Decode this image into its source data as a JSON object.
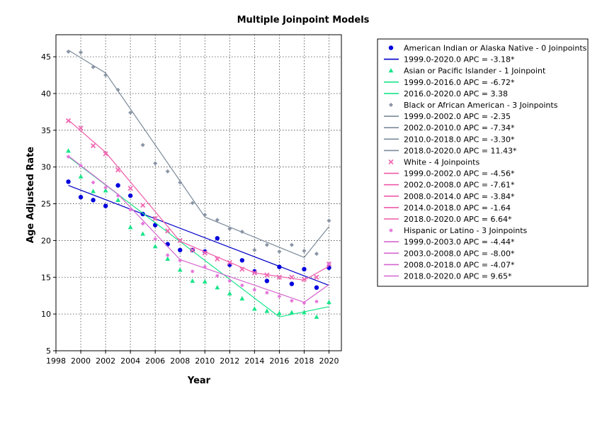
{
  "chart_data": {
    "type": "scatter",
    "title": "Multiple Joinpoint Models",
    "xlabel": "Year",
    "ylabel": "Age Adjusted Rate",
    "xlim": [
      1998,
      2021
    ],
    "ylim": [
      5,
      48
    ],
    "xticks": [
      1998,
      2000,
      2002,
      2004,
      2006,
      2008,
      2010,
      2012,
      2014,
      2016,
      2018,
      2020
    ],
    "yticks": [
      5,
      10,
      15,
      20,
      25,
      30,
      35,
      40,
      45
    ],
    "grid": true,
    "legend_position": "right",
    "series": [
      {
        "name": "American Indian or Alaska Native - 0 Joinpoints",
        "marker": "circle",
        "color": "#0000dd",
        "line_color": "#0000c8",
        "x": [
          1999,
          2000,
          2001,
          2002,
          2003,
          2004,
          2005,
          2006,
          2007,
          2008,
          2009,
          2010,
          2011,
          2012,
          2013,
          2014,
          2015,
          2016,
          2017,
          2018,
          2019,
          2020
        ],
        "y": [
          28.0,
          25.9,
          25.5,
          24.7,
          27.5,
          26.1,
          23.6,
          22.1,
          19.5,
          18.7,
          18.7,
          18.5,
          20.3,
          16.7,
          17.3,
          15.8,
          14.5,
          16.4,
          14.1,
          16.1,
          13.6,
          16.3
        ],
        "fit_x": [
          1999,
          2020
        ],
        "fit_y": [
          27.5,
          13.9
        ],
        "segments": [
          "1999.0-2020.0 APC  = -3.18*"
        ]
      },
      {
        "name": "Asian or Pacific Islander - 1 Joinpoint",
        "marker": "triangle",
        "color": "#19e58a",
        "line_color": "#19e58a",
        "x": [
          1999,
          2000,
          2001,
          2002,
          2003,
          2004,
          2005,
          2006,
          2007,
          2008,
          2009,
          2010,
          2011,
          2012,
          2013,
          2014,
          2015,
          2016,
          2017,
          2018,
          2019,
          2020
        ],
        "y": [
          32.2,
          28.7,
          26.7,
          26.8,
          25.5,
          21.8,
          20.9,
          19.2,
          17.5,
          16.0,
          14.5,
          14.4,
          13.6,
          12.8,
          12.1,
          10.7,
          10.4,
          10.1,
          10.2,
          10.2,
          9.6,
          11.6
        ],
        "fit_x": [
          1999,
          2016,
          2020
        ],
        "fit_y": [
          31.4,
          9.6,
          11.0
        ],
        "segments": [
          "1999.0-2016.0 APC  = -6.72*",
          "2016.0-2020.0 APC  =  3.38"
        ]
      },
      {
        "name": "Black or African American - 3 Joinpoints",
        "marker": "diamond",
        "color": "#8a96a6",
        "line_color": "#7b8a9b",
        "x": [
          1999,
          2000,
          2001,
          2002,
          2003,
          2004,
          2005,
          2006,
          2007,
          2008,
          2009,
          2010,
          2011,
          2012,
          2013,
          2014,
          2015,
          2016,
          2017,
          2018,
          2019,
          2020
        ],
        "y": [
          45.7,
          45.6,
          43.6,
          42.5,
          40.5,
          37.4,
          33.0,
          30.5,
          29.4,
          27.9,
          25.1,
          23.5,
          22.8,
          21.6,
          21.2,
          18.7,
          19.4,
          18.5,
          19.4,
          18.6,
          18.2,
          22.7
        ],
        "fit_x": [
          1999,
          2002,
          2010,
          2018,
          2020
        ],
        "fit_y": [
          45.9,
          42.8,
          23.2,
          17.7,
          21.9
        ],
        "segments": [
          "1999.0-2002.0 APC  = -2.35",
          "2002.0-2010.0 APC  = -7.34*",
          "2010.0-2018.0 APC  = -3.30*",
          "2018.0-2020.0 APC  = 11.43*"
        ]
      },
      {
        "name": "White - 4 Joinpoints",
        "marker": "square",
        "color": "#f06bb4",
        "line_color": "#ee5aa8",
        "x": [
          1999,
          2000,
          2001,
          2002,
          2003,
          2004,
          2005,
          2006,
          2007,
          2008,
          2009,
          2010,
          2011,
          2012,
          2013,
          2014,
          2015,
          2016,
          2017,
          2018,
          2019,
          2020
        ],
        "y": [
          36.3,
          35.3,
          32.9,
          31.8,
          29.6,
          27.1,
          24.8,
          23.0,
          21.3,
          20.0,
          18.7,
          18.3,
          17.5,
          17.0,
          16.1,
          15.6,
          15.3,
          15.0,
          15.0,
          14.7,
          15.0,
          16.8
        ],
        "fit_x": [
          1999,
          2002,
          2008,
          2014,
          2018,
          2020
        ],
        "fit_y": [
          36.4,
          32.0,
          19.9,
          15.6,
          14.6,
          16.5
        ],
        "segments": [
          "1999.0-2002.0 APC  = -4.56*",
          "2002.0-2008.0 APC  = -7.61*",
          "2008.0-2014.0 APC  = -3.84*",
          "2014.0-2018.0 APC  = -1.64",
          "2018.0-2020.0 APC  =  6.64*"
        ]
      },
      {
        "name": "Hispanic or Latino - 3 Joinpoints",
        "marker": "star",
        "color": "#e470d8",
        "line_color": "#d465cf",
        "x": [
          1999,
          2000,
          2001,
          2002,
          2003,
          2004,
          2005,
          2006,
          2007,
          2008,
          2009,
          2010,
          2011,
          2012,
          2013,
          2014,
          2015,
          2016,
          2017,
          2018,
          2019,
          2020
        ],
        "y": [
          31.4,
          30.2,
          27.9,
          27.2,
          26.1,
          24.2,
          22.3,
          20.2,
          18.0,
          17.3,
          15.8,
          16.4,
          15.2,
          14.5,
          13.9,
          13.3,
          12.9,
          12.4,
          11.8,
          11.5,
          11.7,
          16.8
        ],
        "fit_x": [
          1999,
          2003,
          2008,
          2018,
          2020
        ],
        "fit_y": [
          31.5,
          26.3,
          17.4,
          11.6,
          14.0
        ],
        "segments": [
          "1999.0-2003.0 APC  = -4.44*",
          "2003.0-2008.0 APC  = -8.00*",
          "2008.0-2018.0 APC  = -4.07*",
          "2018.0-2020.0 APC  =  9.65*"
        ]
      }
    ]
  }
}
